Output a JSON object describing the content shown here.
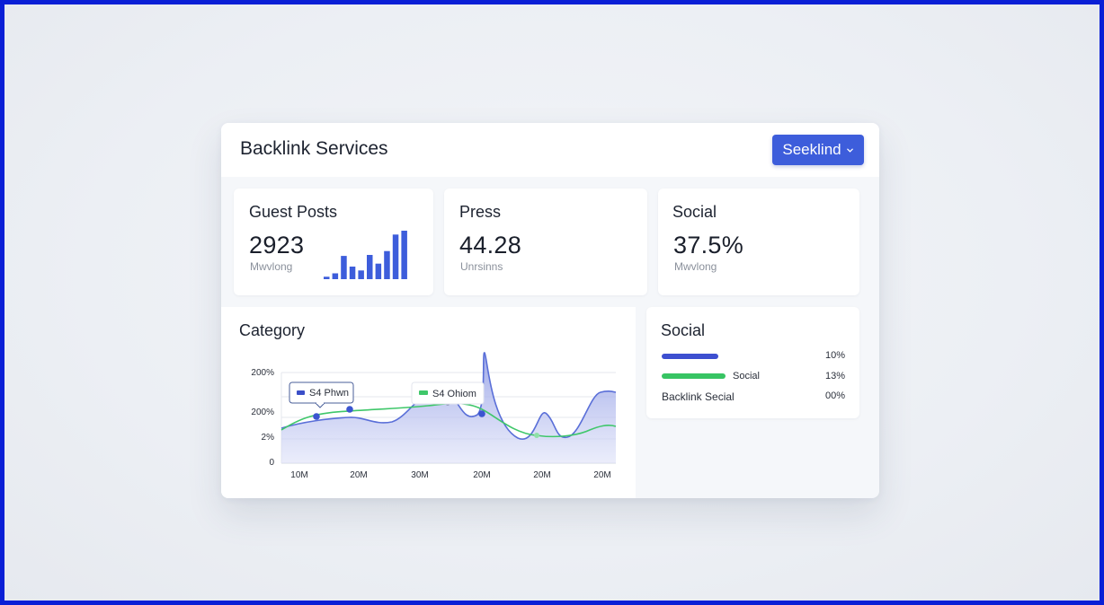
{
  "header": {
    "title": "Backlink Services",
    "select_label": "Seeklind"
  },
  "stats": [
    {
      "title": "Guest Posts",
      "value": "2923",
      "sub": "Mwvlong",
      "mini_bars": [
        0.05,
        0.12,
        0.48,
        0.26,
        0.18,
        0.5,
        0.32,
        0.58,
        0.92,
        1.0
      ]
    },
    {
      "title": "Press",
      "value": "44.28",
      "sub": "Unrsinns"
    },
    {
      "title": "Social",
      "value": "37.5%",
      "sub": "Mwvlong"
    }
  ],
  "category": {
    "title": "Category",
    "chart_data": {
      "type": "area",
      "y_ticks": [
        "200%",
        "200%",
        "2%",
        "0"
      ],
      "x_ticks": [
        "10M",
        "20M",
        "30M",
        "20M",
        "20M",
        "20M"
      ],
      "series": [
        {
          "name": "S4 Phwn",
          "color": "#5a6fd8"
        },
        {
          "name": "S4 Ohiom",
          "color": "#3fc76a"
        }
      ],
      "tooltips": [
        "S4 Phwn",
        "S4 Ohiom"
      ]
    }
  },
  "social": {
    "title": "Social",
    "rows": [
      {
        "label": "",
        "pct": "10%",
        "bar_fraction": 0.42,
        "color": "#3d4fd0"
      },
      {
        "label": "Social",
        "pct": "13%",
        "bar_fraction": 0.47,
        "color": "#37c463"
      },
      {
        "label": "Backlink Secial",
        "pct": "00%",
        "bar_fraction": 0,
        "color": "#3d4fd0"
      }
    ]
  },
  "colors": {
    "accent": "#3d5ddb",
    "frame": "#0a1fd6",
    "area_fill": "#c5cbf2",
    "green_line": "#3fc76a"
  }
}
